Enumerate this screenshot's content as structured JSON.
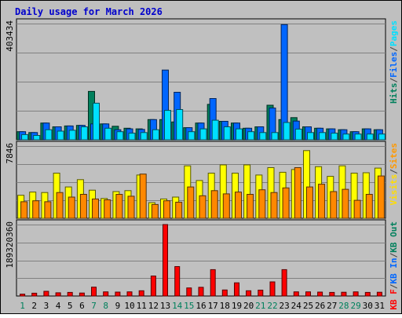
{
  "chart_data": {
    "type": "bar",
    "title": "Daily usage for March 2026",
    "x": [
      "1",
      "2",
      "3",
      "4",
      "5",
      "6",
      "7",
      "8",
      "9",
      "10",
      "11",
      "12",
      "13",
      "14",
      "15",
      "16",
      "17",
      "18",
      "19",
      "20",
      "21",
      "22",
      "23",
      "24",
      "25",
      "26",
      "27",
      "28",
      "29",
      "30",
      "31"
    ],
    "weekend_days": [
      "1",
      "7",
      "8",
      "14",
      "15",
      "21",
      "22",
      "28",
      "29"
    ],
    "panels": [
      {
        "name": "traffic",
        "ymax_label": "403434",
        "ymax": 403434,
        "axis_labels": [
          {
            "text": "Hits",
            "color": "#00805c"
          },
          {
            "text": "/",
            "color": "#404040"
          },
          {
            "text": "Files",
            "color": "#0066ff"
          },
          {
            "text": "/",
            "color": "#404040"
          },
          {
            "text": "Pages",
            "color": "#00e0ff"
          }
        ],
        "series": [
          {
            "name": "Hits",
            "color": "#00805c",
            "values": [
              28000,
              25000,
              58000,
              45000,
              48000,
              50000,
              168000,
              55000,
              47000,
              40000,
              38000,
              70000,
              70000,
              62000,
              42000,
              58000,
              123000,
              64000,
              58000,
              40000,
              45000,
              120000,
              70000,
              77000,
              45000,
              40000,
              38000,
              35000,
              28000,
              38000,
              35000
            ]
          },
          {
            "name": "Files",
            "color": "#0066ff",
            "values": [
              28000,
              25000,
              58000,
              45000,
              48000,
              50000,
              55000,
              55000,
              35000,
              38000,
              36000,
              70000,
              242000,
              165000,
              42000,
              58000,
              143000,
              64000,
              58000,
              40000,
              45000,
              110000,
              400000,
              65000,
              45000,
              40000,
              38000,
              35000,
              28000,
              38000,
              35000
            ]
          },
          {
            "name": "Pages",
            "color": "#00e0ff",
            "values": [
              18000,
              15000,
              35000,
              30000,
              33000,
              45000,
              127000,
              40000,
              28000,
              23000,
              25000,
              35000,
              102000,
              105000,
              28000,
              38000,
              68000,
              45000,
              38000,
              28000,
              25000,
              25000,
              60000,
              37000,
              25000,
              25000,
              23000,
              20000,
              20000,
              20000,
              20000
            ]
          }
        ]
      },
      {
        "name": "visits",
        "ymax_label": "7846",
        "ymax": 7846,
        "axis_labels": [
          {
            "text": "Visits",
            "color": "#ffdd00"
          },
          {
            "text": "/",
            "color": "#404040"
          },
          {
            "text": "Sites",
            "color": "#ff9900"
          }
        ],
        "series": [
          {
            "name": "Visits",
            "color": "#ffff00",
            "values": [
              2500,
              2850,
              2800,
              4900,
              3400,
              4200,
              3050,
              2150,
              2900,
              3000,
              4700,
              1700,
              2100,
              2300,
              5700,
              4100,
              4900,
              5800,
              4900,
              5800,
              4700,
              5500,
              5000,
              5300,
              7350,
              5600,
              4550,
              5700,
              4900,
              4950,
              5450
            ]
          },
          {
            "name": "Sites",
            "color": "#ff8800",
            "values": [
              1800,
              1900,
              1800,
              2800,
              2300,
              2600,
              2100,
              2000,
              2600,
              2400,
              4800,
              1500,
              1900,
              1750,
              3400,
              2450,
              3000,
              2650,
              2850,
              2600,
              3100,
              2800,
              3300,
              5500,
              3400,
              3700,
              2900,
              3150,
              1950,
              2600,
              4600
            ]
          }
        ]
      },
      {
        "name": "kbytes",
        "ymax_label": "189320360",
        "ymax": 189320360,
        "axis_labels": [
          {
            "text": "KB F",
            "color": "#ff0000"
          },
          {
            "text": "/",
            "color": "#404040"
          },
          {
            "text": "KB In",
            "color": "#0066ff"
          },
          {
            "text": "/",
            "color": "#404040"
          },
          {
            "text": "KB Out",
            "color": "#00805c"
          }
        ],
        "series": [
          {
            "name": "KB F",
            "color": "#ff0000",
            "values": [
              5000000,
              7500000,
              12500000,
              8500000,
              9500000,
              8000000,
              23500000,
              11000000,
              10500000,
              11000000,
              14000000,
              53000000,
              189320360,
              78000000,
              21500000,
              23000000,
              70000000,
              16000000,
              35000000,
              14000000,
              15500000,
              37500000,
              70000000,
              11000000,
              11000000,
              10500000,
              9500000,
              10000000,
              11000000,
              9500000,
              10000000
            ]
          }
        ]
      }
    ]
  }
}
